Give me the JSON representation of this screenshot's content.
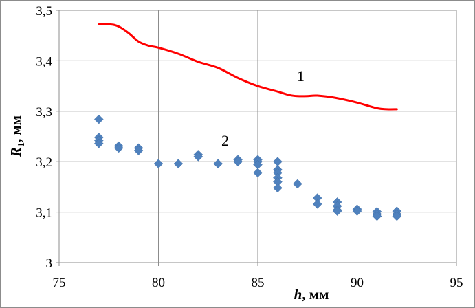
{
  "chart_data": {
    "type": "scatter",
    "title": "",
    "xlabel": {
      "var": "h",
      "unit": ", мм"
    },
    "ylabel": {
      "var": "R",
      "sub": "1",
      "unit": ", мм"
    },
    "xlim": [
      75,
      95
    ],
    "ylim": [
      3.0,
      3.5
    ],
    "x_ticks": [
      75,
      80,
      85,
      90,
      95
    ],
    "y_ticks": [
      3.0,
      3.1,
      3.2,
      3.3,
      3.4,
      3.5
    ],
    "x_tick_labels": [
      "75",
      "80",
      "85",
      "90",
      "95"
    ],
    "y_tick_labels": [
      "3",
      "3,1",
      "3,2",
      "3,3",
      "3,4",
      "3,5"
    ],
    "grid": true,
    "series": [
      {
        "name": "1",
        "kind": "line",
        "color": "#ff0000",
        "points": [
          [
            77,
            3.472
          ],
          [
            77.6,
            3.472
          ],
          [
            78,
            3.468
          ],
          [
            78.5,
            3.455
          ],
          [
            79,
            3.438
          ],
          [
            79.5,
            3.43
          ],
          [
            80,
            3.426
          ],
          [
            81,
            3.414
          ],
          [
            82,
            3.398
          ],
          [
            83,
            3.386
          ],
          [
            84,
            3.366
          ],
          [
            85,
            3.35
          ],
          [
            86,
            3.339
          ],
          [
            86.6,
            3.332
          ],
          [
            87,
            3.33
          ],
          [
            87.5,
            3.33
          ],
          [
            88,
            3.331
          ],
          [
            89,
            3.326
          ],
          [
            90,
            3.317
          ],
          [
            91,
            3.306
          ],
          [
            91.5,
            3.304
          ],
          [
            92,
            3.304
          ]
        ]
      },
      {
        "name": "2",
        "kind": "scatter",
        "color": "#4f81bd",
        "points": [
          [
            77,
            3.284
          ],
          [
            77,
            3.248
          ],
          [
            77,
            3.242
          ],
          [
            77,
            3.236
          ],
          [
            78,
            3.231
          ],
          [
            78,
            3.227
          ],
          [
            79,
            3.227
          ],
          [
            79,
            3.222
          ],
          [
            80,
            3.196
          ],
          [
            81,
            3.196
          ],
          [
            82,
            3.214
          ],
          [
            82,
            3.21
          ],
          [
            83,
            3.196
          ],
          [
            84,
            3.204
          ],
          [
            84,
            3.2
          ],
          [
            85,
            3.204
          ],
          [
            85,
            3.2
          ],
          [
            85,
            3.194
          ],
          [
            85,
            3.178
          ],
          [
            86,
            3.2
          ],
          [
            86,
            3.184
          ],
          [
            86,
            3.178
          ],
          [
            86,
            3.168
          ],
          [
            86,
            3.16
          ],
          [
            86,
            3.148
          ],
          [
            87,
            3.156
          ],
          [
            88,
            3.128
          ],
          [
            88,
            3.116
          ],
          [
            89,
            3.12
          ],
          [
            89,
            3.112
          ],
          [
            89,
            3.104
          ],
          [
            89,
            3.102
          ],
          [
            90,
            3.106
          ],
          [
            90,
            3.102
          ],
          [
            91,
            3.101
          ],
          [
            91,
            3.096
          ],
          [
            91,
            3.092
          ],
          [
            92,
            3.102
          ],
          [
            92,
            3.096
          ],
          [
            92,
            3.092
          ]
        ]
      }
    ]
  }
}
